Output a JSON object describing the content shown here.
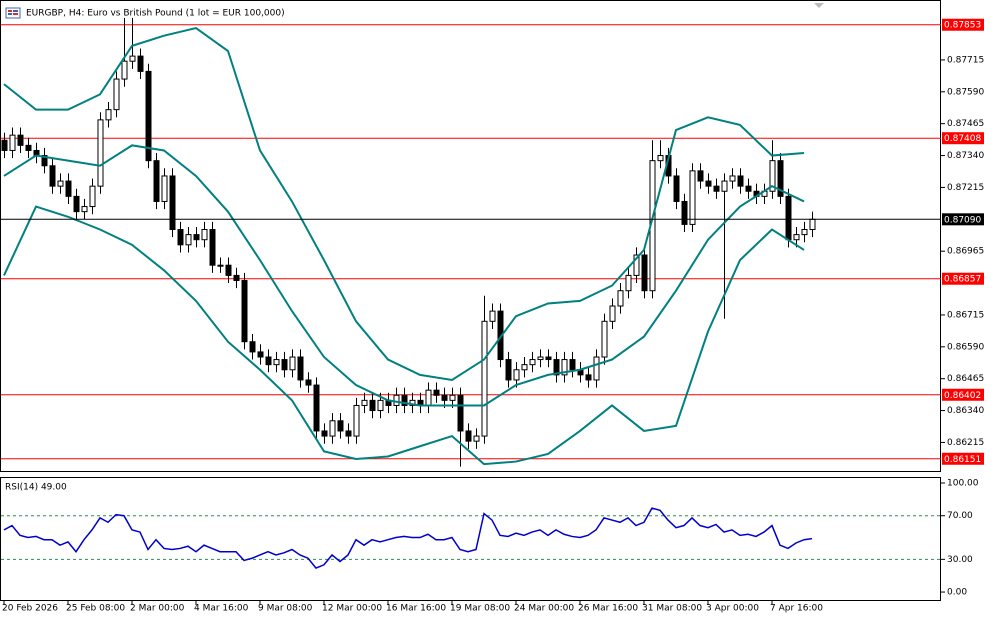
{
  "chart_data": [
    {
      "type": "candlestick",
      "title": "EURGBP, H4:  Euro vs British Pound (1 lot = EUR 100,000)",
      "open": [
        0.874,
        0.8736,
        0.8742,
        0.8738,
        0.8736,
        0.8734,
        0.873,
        0.8722,
        0.8724,
        0.8718,
        0.8712,
        0.8714,
        0.8722,
        0.8748,
        0.8752,
        0.8764,
        0.8771,
        0.8773,
        0.8767,
        0.8732,
        0.8716,
        0.8726,
        0.8705,
        0.8699,
        0.8703,
        0.8701,
        0.8705,
        0.8691,
        0.8691,
        0.8687,
        0.8685,
        0.8661,
        0.8657,
        0.8655,
        0.8652,
        0.8654,
        0.865,
        0.8655,
        0.8646,
        0.8644,
        0.8626,
        0.8624,
        0.863,
        0.8626,
        0.8624,
        0.8636,
        0.8638,
        0.8634,
        0.8638,
        0.8636,
        0.864,
        0.8636,
        0.8638,
        0.8636,
        0.8642,
        0.864,
        0.8638,
        0.864,
        0.8626,
        0.8622,
        0.8624,
        0.8669,
        0.8673,
        0.8654,
        0.8646,
        0.865,
        0.8652,
        0.8654,
        0.8655,
        0.8654,
        0.8648,
        0.8654,
        0.865,
        0.8648,
        0.8646,
        0.8655,
        0.8669,
        0.8675,
        0.8681,
        0.8687,
        0.8695,
        0.8681,
        0.8732,
        0.8734,
        0.8726,
        0.8716,
        0.8707,
        0.8728,
        0.8724,
        0.8722,
        0.872,
        0.8724,
        0.8726,
        0.8722,
        0.872,
        0.8718,
        0.872,
        0.8732,
        0.8718,
        0.8701,
        0.8703,
        0.8705
      ],
      "high": [
        0.8743,
        0.8745,
        0.8745,
        0.8741,
        0.8739,
        0.8737,
        0.8733,
        0.8727,
        0.8727,
        0.8721,
        0.8717,
        0.8725,
        0.8751,
        0.8755,
        0.8767,
        0.8788,
        0.8788,
        0.8776,
        0.877,
        0.8735,
        0.8729,
        0.8729,
        0.8708,
        0.8706,
        0.8706,
        0.8708,
        0.8708,
        0.8694,
        0.8694,
        0.869,
        0.8688,
        0.8664,
        0.866,
        0.8658,
        0.8657,
        0.8657,
        0.8658,
        0.8658,
        0.8649,
        0.8647,
        0.8629,
        0.8633,
        0.8633,
        0.8629,
        0.8639,
        0.8641,
        0.8641,
        0.8641,
        0.8641,
        0.8643,
        0.8643,
        0.8641,
        0.8641,
        0.8645,
        0.8645,
        0.8643,
        0.8643,
        0.8643,
        0.8629,
        0.8627,
        0.8679,
        0.8676,
        0.8676,
        0.8657,
        0.8653,
        0.8655,
        0.8657,
        0.8658,
        0.8658,
        0.8657,
        0.8657,
        0.8657,
        0.8653,
        0.8651,
        0.8658,
        0.8672,
        0.8678,
        0.8684,
        0.869,
        0.8698,
        0.8698,
        0.874,
        0.874,
        0.8737,
        0.8729,
        0.8719,
        0.8731,
        0.8731,
        0.8727,
        0.8725,
        0.8727,
        0.8729,
        0.8729,
        0.8725,
        0.8723,
        0.8723,
        0.874,
        0.8735,
        0.8721,
        0.8706,
        0.8708,
        0.8712
      ],
      "low": [
        0.8733,
        0.8733,
        0.8735,
        0.8733,
        0.8731,
        0.8727,
        0.8719,
        0.8719,
        0.8715,
        0.8709,
        0.8709,
        0.8711,
        0.8719,
        0.8745,
        0.8749,
        0.8761,
        0.8768,
        0.8764,
        0.8729,
        0.8713,
        0.8713,
        0.8702,
        0.8696,
        0.8696,
        0.8698,
        0.8698,
        0.8688,
        0.8688,
        0.8684,
        0.8682,
        0.8658,
        0.8654,
        0.8652,
        0.8649,
        0.8649,
        0.8647,
        0.8647,
        0.8643,
        0.8641,
        0.8623,
        0.8621,
        0.8621,
        0.8623,
        0.8621,
        0.8621,
        0.8633,
        0.8631,
        0.8631,
        0.8633,
        0.8633,
        0.8633,
        0.8633,
        0.8633,
        0.8633,
        0.8637,
        0.8635,
        0.8635,
        0.8612,
        0.8619,
        0.8619,
        0.8621,
        0.8666,
        0.8651,
        0.8643,
        0.8643,
        0.8647,
        0.8649,
        0.8651,
        0.8651,
        0.8645,
        0.8645,
        0.8647,
        0.8645,
        0.8643,
        0.8643,
        0.8652,
        0.8666,
        0.8672,
        0.8678,
        0.8684,
        0.8678,
        0.8678,
        0.8729,
        0.8723,
        0.8713,
        0.8704,
        0.8704,
        0.8721,
        0.8719,
        0.8717,
        0.867,
        0.8721,
        0.8719,
        0.8717,
        0.8715,
        0.8715,
        0.8717,
        0.8715,
        0.8698,
        0.8698,
        0.87,
        0.8702
      ],
      "close": [
        0.8736,
        0.8742,
        0.8738,
        0.8736,
        0.8734,
        0.873,
        0.8722,
        0.8724,
        0.8718,
        0.8712,
        0.8714,
        0.8722,
        0.8748,
        0.8752,
        0.8764,
        0.8771,
        0.8773,
        0.8767,
        0.8732,
        0.8716,
        0.8726,
        0.8705,
        0.8699,
        0.8703,
        0.8701,
        0.8705,
        0.8691,
        0.8691,
        0.8687,
        0.8685,
        0.8661,
        0.8657,
        0.8655,
        0.8652,
        0.8654,
        0.865,
        0.8655,
        0.8646,
        0.8644,
        0.8626,
        0.8624,
        0.863,
        0.8626,
        0.8624,
        0.8636,
        0.8638,
        0.8634,
        0.8638,
        0.8636,
        0.864,
        0.8636,
        0.8638,
        0.8636,
        0.8642,
        0.864,
        0.8638,
        0.864,
        0.8626,
        0.8622,
        0.8624,
        0.8669,
        0.8673,
        0.8654,
        0.8646,
        0.865,
        0.8652,
        0.8654,
        0.8655,
        0.8654,
        0.8648,
        0.8654,
        0.865,
        0.8648,
        0.8646,
        0.8655,
        0.8669,
        0.8675,
        0.8681,
        0.8687,
        0.8695,
        0.8681,
        0.8732,
        0.8734,
        0.8726,
        0.8716,
        0.8707,
        0.8728,
        0.8724,
        0.8722,
        0.872,
        0.8724,
        0.8726,
        0.8722,
        0.872,
        0.8718,
        0.872,
        0.8732,
        0.8718,
        0.8701,
        0.8703,
        0.8705,
        0.8709
      ],
      "bull_color": "#ffffff",
      "bear_color": "#000000",
      "wick_color": "#000000",
      "bands": {
        "color": "#008080",
        "x": [
          0,
          4,
          8,
          12,
          16,
          20,
          24,
          28,
          32,
          36,
          40,
          44,
          48,
          52,
          56,
          60,
          64,
          68,
          72,
          76,
          80,
          84,
          88,
          92,
          96,
          100
        ],
        "upper": [
          0.8762,
          0.8752,
          0.8752,
          0.8758,
          0.8777,
          0.8781,
          0.8784,
          0.8775,
          0.8736,
          0.8716,
          0.8693,
          0.8669,
          0.8654,
          0.8648,
          0.8646,
          0.8654,
          0.8671,
          0.8676,
          0.8677,
          0.8683,
          0.8697,
          0.8744,
          0.8749,
          0.8746,
          0.8734,
          0.8735
        ],
        "middle": [
          0.8726,
          0.8734,
          0.8732,
          0.873,
          0.8738,
          0.8736,
          0.8726,
          0.8712,
          0.8693,
          0.8673,
          0.8655,
          0.8644,
          0.8638,
          0.8636,
          0.8636,
          0.8636,
          0.8644,
          0.8648,
          0.865,
          0.8654,
          0.8663,
          0.8681,
          0.8701,
          0.8714,
          0.8722,
          0.8716
        ],
        "lower": [
          0.8687,
          0.8714,
          0.871,
          0.8705,
          0.8699,
          0.8689,
          0.8677,
          0.8661,
          0.865,
          0.8638,
          0.8618,
          0.8615,
          0.8616,
          0.862,
          0.8624,
          0.8613,
          0.8614,
          0.8617,
          0.8626,
          0.8636,
          0.8626,
          0.8628,
          0.8665,
          0.8693,
          0.8705,
          0.8697
        ]
      },
      "ylim": [
        0.86103,
        0.8795
      ],
      "yticks": [
        0.87715,
        {
          "value": 0.8759,
          "label": "0.87590"
        },
        0.87465,
        {
          "value": 0.8734,
          "label": "0.87340"
        },
        0.87215,
        0.86965,
        0.86715,
        {
          "value": 0.8659,
          "label": "0.86590"
        },
        0.86465,
        {
          "value": 0.8634,
          "label": "0.86340"
        },
        0.86215
      ],
      "xticks": [
        {
          "value": 0,
          "label": "20 Feb 2026"
        },
        {
          "value": 8,
          "label": "25 Feb 08:00"
        },
        {
          "value": 16,
          "label": "2 Mar 00:00"
        },
        {
          "value": 24,
          "label": "4 Mar 16:00"
        },
        {
          "value": 32,
          "label": "9 Mar 08:00"
        },
        {
          "value": 40,
          "label": "12 Mar 00:00"
        },
        {
          "value": 48,
          "label": "16 Mar 16:00"
        },
        {
          "value": 56,
          "label": "19 Mar 08:00"
        },
        {
          "value": 64,
          "label": "24 Mar 00:00"
        },
        {
          "value": 72,
          "label": "26 Mar 16:00"
        },
        {
          "value": 80,
          "label": "31 Mar 08:00"
        },
        {
          "value": 88,
          "label": "3 Apr 00:00"
        },
        {
          "value": 96,
          "label": "7 Apr 16:00"
        }
      ],
      "levels": [
        0.87853,
        0.87408,
        0.86857,
        0.86402,
        0.86151
      ],
      "level_color": "#ff0000",
      "level_dashed": false,
      "level_tags": true,
      "last_price": {
        "value": 0.8709,
        "label": "0.87090"
      },
      "last_price_color": "#000000"
    },
    {
      "type": "line",
      "title": "RSI(14) 49.00",
      "values": [
        57,
        61,
        52,
        50,
        51,
        48,
        48,
        43,
        46,
        37,
        48,
        57,
        68,
        64,
        71,
        70,
        57,
        55,
        39,
        48,
        40,
        39,
        40,
        42,
        37,
        43,
        40,
        37,
        37,
        37,
        29,
        31,
        34,
        37,
        34,
        36,
        39,
        34,
        31,
        22,
        25,
        34,
        28,
        34,
        48,
        43,
        48,
        46,
        48,
        50,
        51,
        50,
        50,
        53,
        48,
        48,
        50,
        39,
        37,
        39,
        72,
        66,
        52,
        51,
        54,
        52,
        55,
        57,
        52,
        57,
        53,
        51,
        50,
        52,
        57,
        68,
        66,
        64,
        68,
        61,
        64,
        77,
        75,
        66,
        59,
        61,
        68,
        61,
        59,
        62,
        55,
        57,
        52,
        53,
        51,
        55,
        61,
        43,
        40,
        45,
        48,
        49
      ],
      "color": "#0000cd",
      "ylim": [
        -7.3,
        104.6
      ],
      "yticks": [
        {
          "value": 100,
          "label": "100.00"
        },
        {
          "value": 70,
          "label": "70.00"
        },
        {
          "value": 30,
          "label": "30.00"
        },
        {
          "value": 0,
          "label": "0.00"
        }
      ],
      "levels": [
        70,
        30
      ],
      "level_color": "#2e8b57",
      "level_dashed": true,
      "level_tags": false
    }
  ]
}
